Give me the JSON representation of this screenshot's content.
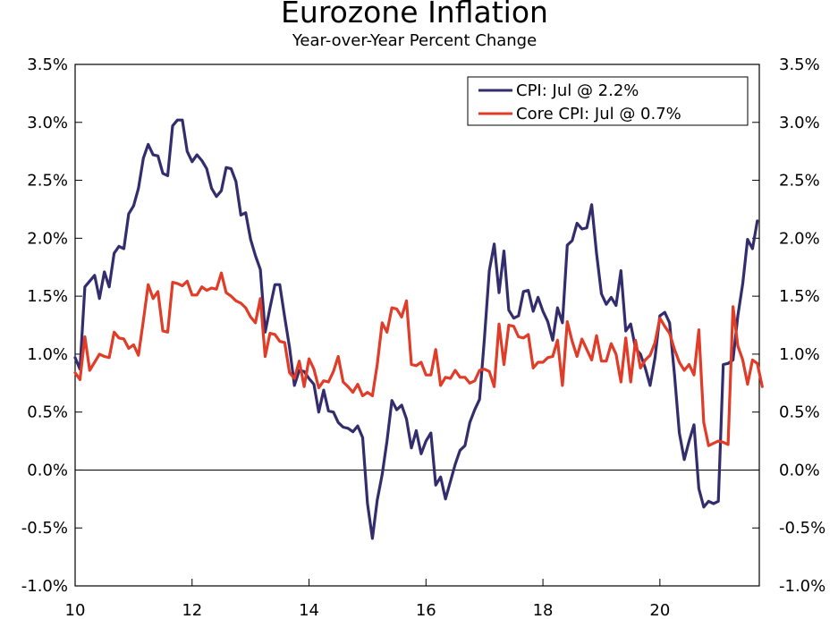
{
  "chart_data": {
    "type": "line",
    "title": "Eurozone Inflation",
    "subtitle": "Year-over-Year Percent Change",
    "xlabel": "",
    "ylabel": "",
    "xlim": [
      2010,
      2021.7
    ],
    "ylim": [
      -1.0,
      3.5
    ],
    "x_ticks": [
      2010,
      2012,
      2014,
      2016,
      2018,
      2020
    ],
    "x_tick_labels": [
      "10",
      "12",
      "14",
      "16",
      "18",
      "20"
    ],
    "y_ticks": [
      -1.0,
      -0.5,
      0.0,
      0.5,
      1.0,
      1.5,
      2.0,
      2.5,
      3.0,
      3.5
    ],
    "y_tick_labels": [
      "-1.0%",
      "-0.5%",
      "0.0%",
      "0.5%",
      "1.0%",
      "1.5%",
      "2.0%",
      "2.5%",
      "3.0%",
      "3.5%"
    ],
    "x_start": 2010,
    "x_step_months": 1,
    "legend_position": "top-right",
    "series": [
      {
        "name": "CPI: Jul @ 2.2%",
        "color": "#332d6e",
        "values": [
          0.97,
          0.87,
          1.58,
          1.63,
          1.68,
          1.48,
          1.71,
          1.58,
          1.87,
          1.93,
          1.91,
          2.21,
          2.28,
          2.43,
          2.69,
          2.81,
          2.72,
          2.71,
          2.56,
          2.54,
          2.97,
          3.02,
          3.02,
          2.75,
          2.66,
          2.72,
          2.67,
          2.6,
          2.43,
          2.36,
          2.41,
          2.61,
          2.6,
          2.49,
          2.2,
          2.22,
          1.99,
          1.85,
          1.73,
          1.19,
          1.4,
          1.6,
          1.6,
          1.32,
          1.06,
          0.73,
          0.86,
          0.85,
          0.79,
          0.74,
          0.5,
          0.69,
          0.51,
          0.5,
          0.41,
          0.37,
          0.36,
          0.33,
          0.38,
          0.28,
          -0.29,
          -0.59,
          -0.26,
          -0.04,
          0.25,
          0.6,
          0.52,
          0.56,
          0.44,
          0.19,
          0.34,
          0.14,
          0.25,
          0.32,
          -0.13,
          -0.06,
          -0.25,
          -0.1,
          0.05,
          0.17,
          0.21,
          0.41,
          0.52,
          0.61,
          1.14,
          1.72,
          1.95,
          1.53,
          1.89,
          1.38,
          1.31,
          1.33,
          1.54,
          1.55,
          1.37,
          1.49,
          1.37,
          1.28,
          1.12,
          1.4,
          1.27,
          1.94,
          1.98,
          2.13,
          2.08,
          2.09,
          2.29,
          1.87,
          1.52,
          1.43,
          1.49,
          1.42,
          1.72,
          1.2,
          1.26,
          1.05,
          1.0,
          0.88,
          0.73,
          0.97,
          1.33,
          1.36,
          1.27,
          0.82,
          0.32,
          0.09,
          0.25,
          0.39,
          -0.16,
          -0.32,
          -0.27,
          -0.29,
          -0.27,
          0.91,
          0.92,
          0.95,
          1.33,
          1.61,
          1.99,
          1.91,
          2.15
        ]
      },
      {
        "name": "Core CPI: Jul @ 0.7%",
        "color": "#e03c28",
        "values": [
          0.84,
          0.78,
          1.15,
          0.86,
          0.93,
          1.0,
          0.98,
          0.97,
          1.19,
          1.14,
          1.13,
          1.05,
          1.08,
          0.99,
          1.29,
          1.6,
          1.48,
          1.54,
          1.2,
          1.19,
          1.62,
          1.61,
          1.59,
          1.63,
          1.51,
          1.51,
          1.58,
          1.55,
          1.57,
          1.56,
          1.7,
          1.53,
          1.5,
          1.46,
          1.44,
          1.4,
          1.32,
          1.27,
          1.48,
          0.98,
          1.18,
          1.17,
          1.11,
          1.1,
          0.84,
          0.79,
          0.94,
          0.72,
          0.96,
          0.87,
          0.71,
          0.77,
          0.76,
          0.85,
          0.98,
          0.76,
          0.72,
          0.67,
          0.74,
          0.64,
          0.67,
          0.64,
          0.91,
          1.27,
          1.19,
          1.4,
          1.39,
          1.32,
          1.46,
          0.91,
          0.9,
          0.93,
          0.82,
          0.82,
          1.04,
          0.73,
          0.8,
          0.79,
          0.86,
          0.8,
          0.8,
          0.75,
          0.77,
          0.86,
          0.87,
          0.85,
          0.72,
          1.26,
          0.91,
          1.25,
          1.24,
          1.15,
          1.14,
          1.17,
          0.88,
          0.93,
          0.93,
          0.97,
          0.98,
          1.12,
          0.73,
          1.28,
          1.11,
          0.98,
          1.13,
          1.04,
          0.95,
          1.16,
          0.94,
          0.94,
          1.09,
          1.0,
          0.76,
          1.14,
          0.76,
          1.12,
          0.88,
          0.95,
          0.99,
          1.1,
          1.31,
          1.24,
          1.18,
          1.04,
          0.93,
          0.86,
          0.91,
          0.82,
          1.21,
          0.41,
          0.21,
          0.23,
          0.25,
          0.24,
          0.22,
          1.41,
          1.07,
          0.95,
          0.74,
          0.95,
          0.92,
          0.72
        ]
      }
    ]
  }
}
